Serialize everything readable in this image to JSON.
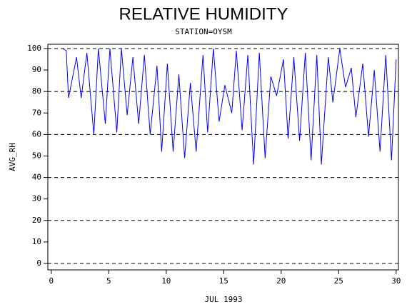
{
  "chart_data": {
    "type": "line",
    "title": "RELATIVE HUMIDITY",
    "subtitle": "STATION=OYSM",
    "x_label": "JUL 1993",
    "y_label": "AVG_RH",
    "xlim": [
      -0.3,
      30.2
    ],
    "ylim": [
      -3,
      102
    ],
    "xticks": [
      0,
      5,
      10,
      15,
      20,
      25,
      30
    ],
    "yticks": [
      0,
      10,
      20,
      30,
      40,
      50,
      60,
      70,
      80,
      90,
      100
    ],
    "ygrid": [
      0,
      20,
      40,
      60,
      80,
      100
    ],
    "series": [
      {
        "color": "#0000ff",
        "x": [
          1.0,
          1.3,
          1.5,
          2.2,
          2.6,
          3.1,
          3.7,
          4.1,
          4.7,
          5.1,
          5.7,
          6.1,
          6.6,
          7.1,
          7.6,
          8.1,
          8.6,
          9.2,
          9.6,
          10.1,
          10.6,
          11.1,
          11.6,
          12.1,
          12.6,
          13.2,
          13.6,
          14.1,
          14.6,
          15.1,
          15.7,
          16.1,
          16.6,
          17.1,
          17.6,
          18.1,
          18.6,
          19.1,
          19.6,
          20.2,
          20.6,
          21.1,
          21.6,
          22.1,
          22.6,
          23.1,
          23.5,
          24.1,
          24.5,
          25.1,
          25.6,
          26.1,
          26.5,
          27.1,
          27.6,
          28.1,
          28.6,
          29.1,
          29.6,
          30.0
        ],
        "values": [
          100,
          99,
          77,
          96,
          77,
          98,
          60,
          100,
          65,
          100,
          61,
          100,
          69,
          96,
          65,
          97,
          60,
          92,
          52,
          93,
          52,
          88,
          49,
          84,
          52,
          97,
          61,
          100,
          66,
          83,
          70,
          99,
          62,
          97,
          46,
          98,
          49,
          87,
          78,
          95,
          58,
          96,
          57,
          98,
          48,
          97,
          46,
          96,
          75,
          100,
          82,
          91,
          68,
          93,
          59,
          90,
          52,
          97,
          48,
          95
        ]
      }
    ]
  }
}
